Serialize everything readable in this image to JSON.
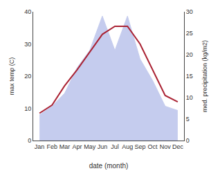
{
  "chart_data": {
    "type": "line",
    "categories": [
      "Jan",
      "Feb",
      "Mar",
      "Apr",
      "May",
      "Jun",
      "Jul",
      "Aug",
      "Sep",
      "Oct",
      "Nov",
      "Dec"
    ],
    "xlabel": "date (month)",
    "ylabel": "max temp (C)",
    "y2label": "med. precipitation (kg/m2)",
    "series": [
      {
        "type": "area",
        "axis": "y2",
        "color": "#c5ccee",
        "values": [
          6.0,
          8.0,
          11.0,
          17.0,
          21.0,
          29.0,
          21.0,
          29.0,
          19.0,
          14.0,
          8.0,
          7.0
        ]
      },
      {
        "type": "line",
        "color": "#aa2233",
        "values": [
          8.5,
          11.0,
          17.0,
          22.0,
          27.5,
          33.0,
          35.5,
          35.5,
          30.0,
          22.0,
          14.0,
          12.0
        ]
      }
    ],
    "ylim": [
      0,
      40
    ],
    "yticks": [
      0,
      10,
      20,
      30,
      40
    ],
    "y2lim": [
      0,
      30
    ],
    "y2ticks": [
      0,
      5,
      10,
      15,
      20,
      25,
      30
    ],
    "grid": false
  }
}
